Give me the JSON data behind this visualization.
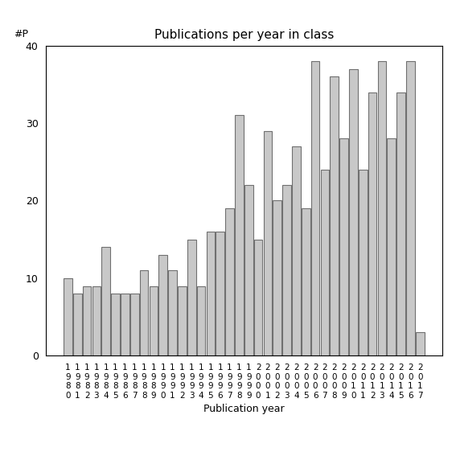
{
  "title": "Publications per year in class",
  "xlabel": "Publication year",
  "ylabel": "#P",
  "ylim": [
    0,
    40
  ],
  "yticks": [
    0,
    10,
    20,
    30,
    40
  ],
  "bar_color": "#c8c8c8",
  "bar_edgecolor": "#707070",
  "years": [
    1980,
    1981,
    1982,
    1983,
    1984,
    1985,
    1986,
    1987,
    1988,
    1989,
    1990,
    1991,
    1992,
    1993,
    1994,
    1995,
    1996,
    1997,
    1998,
    1999,
    2000,
    2001,
    2002,
    2003,
    2004,
    2005,
    2006,
    2007,
    2008,
    2009,
    2010,
    2011,
    2012,
    2013,
    2014,
    2015,
    2016,
    2017
  ],
  "values": [
    10,
    8,
    9,
    9,
    14,
    8,
    8,
    8,
    11,
    9,
    13,
    11,
    9,
    15,
    9,
    16,
    16,
    19,
    31,
    22,
    15,
    29,
    20,
    22,
    27,
    19,
    38,
    24,
    36,
    28,
    37,
    24,
    34,
    38,
    28,
    34,
    38,
    3
  ]
}
